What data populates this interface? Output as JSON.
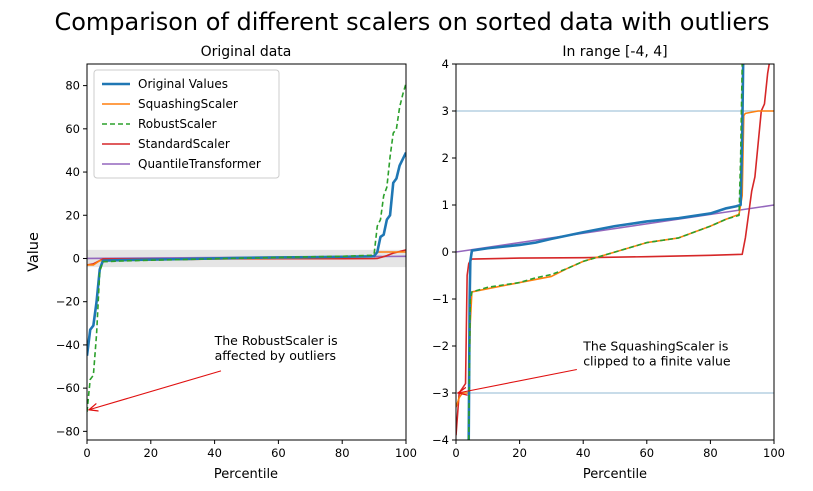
{
  "title": "Comparison of different scalers on sorted data with outliers",
  "ylabel": "Value",
  "colors": {
    "original": "#1f77b4",
    "squashing": "#ff7f0e",
    "robust": "#2ca02c",
    "standard": "#d62728",
    "quantile": "#9467bd",
    "band": "#dcdcdc",
    "hline": "#a8c8dc",
    "arrow": "#e01010"
  },
  "chart_data": [
    {
      "type": "line",
      "title": "Original data",
      "xlabel": "Percentile",
      "ylabel": "Value",
      "xlim": [
        0,
        100
      ],
      "ylim": [
        -84,
        90
      ],
      "x_ticks": [
        0,
        20,
        40,
        60,
        80,
        100
      ],
      "y_ticks": [
        -80,
        -60,
        -40,
        -20,
        0,
        20,
        40,
        60,
        80
      ],
      "band": [
        -4,
        4
      ],
      "legend_position": "top-left",
      "series": [
        {
          "name": "Original Values",
          "key": "original",
          "style": "solid-thick",
          "x": [
            0,
            1,
            2,
            3,
            4,
            5,
            10,
            20,
            30,
            40,
            50,
            60,
            70,
            80,
            89,
            90,
            91,
            92,
            93,
            94,
            95,
            96,
            97,
            98,
            99,
            100
          ],
          "y": [
            -45,
            -33,
            -31,
            -20,
            -5,
            -1,
            -0.8,
            -0.5,
            -0.3,
            0,
            0.3,
            0.5,
            0.6,
            0.8,
            1.0,
            1.1,
            3,
            10,
            11,
            18,
            20,
            35,
            37,
            43,
            46,
            49
          ]
        },
        {
          "name": "SquashingScaler",
          "key": "squashing",
          "style": "solid",
          "x": [
            0,
            2,
            4,
            5,
            10,
            30,
            50,
            70,
            89,
            90,
            91,
            95,
            100
          ],
          "y": [
            -3,
            -3,
            -1,
            -0.9,
            -0.8,
            -0.5,
            0,
            0.3,
            0.8,
            1.5,
            3,
            3,
            3
          ]
        },
        {
          "name": "RobustScaler",
          "key": "robust",
          "style": "dashed",
          "x": [
            0,
            1,
            2,
            3,
            4,
            5,
            10,
            20,
            30,
            40,
            50,
            60,
            70,
            80,
            89,
            90,
            91,
            92,
            93,
            94,
            95,
            96,
            97,
            98,
            99,
            100
          ],
          "y": [
            -71,
            -56,
            -54,
            -35,
            -6,
            -1.5,
            -1.2,
            -0.8,
            -0.5,
            -0.1,
            0.2,
            0.5,
            0.8,
            1.0,
            1.5,
            2,
            15,
            18,
            29,
            33,
            47,
            58,
            60,
            70,
            76,
            81
          ]
        },
        {
          "name": "StandardScaler",
          "key": "standard",
          "style": "solid",
          "x": [
            0,
            2,
            4,
            5,
            20,
            40,
            60,
            80,
            90,
            91,
            94,
            96,
            98,
            100
          ],
          "y": [
            -3,
            -2.5,
            -1,
            -0.2,
            -0.18,
            -0.15,
            -0.12,
            -0.08,
            -0.05,
            0,
            1.3,
            2.5,
            3.2,
            4
          ]
        },
        {
          "name": "QuantileTransformer",
          "key": "quantile",
          "style": "solid",
          "x": [
            0,
            100
          ],
          "y": [
            0,
            1
          ]
        }
      ],
      "annotation": {
        "text_lines": [
          "The RobustScaler is",
          "affected by outliers"
        ],
        "text_at": [
          40,
          -40
        ],
        "arrow_from": [
          42,
          -52
        ],
        "arrow_to": [
          0,
          -70
        ]
      }
    },
    {
      "type": "line",
      "title": "In range [-4, 4]",
      "xlabel": "Percentile",
      "ylabel": "",
      "xlim": [
        0,
        100
      ],
      "ylim": [
        -4,
        4
      ],
      "x_ticks": [
        0,
        20,
        40,
        60,
        80,
        100
      ],
      "y_ticks": [
        -4,
        -3,
        -2,
        -1,
        0,
        1,
        2,
        3,
        4
      ],
      "hlines": [
        3,
        -3
      ],
      "series": [
        {
          "name": "Original Values",
          "key": "original",
          "style": "solid-thick",
          "x": [
            4,
            4.3,
            4.5,
            5,
            10,
            20,
            25,
            30,
            40,
            50,
            60,
            70,
            80,
            85,
            88,
            89.5,
            90,
            90.3
          ],
          "y": [
            -4,
            -1,
            -0.2,
            0.03,
            0.08,
            0.15,
            0.2,
            0.28,
            0.42,
            0.55,
            0.65,
            0.72,
            0.82,
            0.93,
            0.97,
            1.0,
            2.5,
            4
          ]
        },
        {
          "name": "SquashingScaler",
          "key": "squashing",
          "style": "solid",
          "x": [
            0,
            1,
            2,
            3,
            4,
            4.5,
            5,
            10,
            20,
            30,
            35,
            40,
            50,
            60,
            70,
            80,
            85,
            89,
            90,
            90.5,
            91,
            95,
            100
          ],
          "y": [
            -3.3,
            -3.1,
            -3.0,
            -3.0,
            -3.0,
            -1.5,
            -0.85,
            -0.78,
            -0.65,
            -0.52,
            -0.35,
            -0.2,
            0.0,
            0.2,
            0.3,
            0.55,
            0.7,
            0.8,
            1.2,
            2.9,
            2.95,
            3.0,
            3.0
          ]
        },
        {
          "name": "RobustScaler",
          "key": "robust",
          "style": "dashed",
          "x": [
            4,
            4.3,
            4.5,
            5,
            10,
            20,
            25,
            30,
            35,
            40,
            50,
            60,
            70,
            80,
            85,
            89,
            89.5,
            90
          ],
          "y": [
            -4,
            -2,
            -1,
            -0.85,
            -0.75,
            -0.65,
            -0.55,
            -0.48,
            -0.35,
            -0.2,
            0.0,
            0.2,
            0.3,
            0.55,
            0.7,
            0.78,
            2,
            4
          ]
        },
        {
          "name": "StandardScaler",
          "key": "standard",
          "style": "solid",
          "x": [
            0,
            1,
            2,
            3,
            3.5,
            4,
            4.5,
            5,
            20,
            40,
            60,
            80,
            90,
            91,
            93,
            94,
            96,
            97,
            98,
            98.5
          ],
          "y": [
            -3.9,
            -3.0,
            -2.9,
            -2.8,
            -0.5,
            -0.25,
            -0.18,
            -0.15,
            -0.13,
            -0.12,
            -0.1,
            -0.07,
            -0.05,
            0.3,
            1.3,
            1.6,
            3.0,
            3.15,
            3.8,
            4
          ]
        },
        {
          "name": "QuantileTransformer",
          "key": "quantile",
          "style": "solid",
          "x": [
            0,
            100
          ],
          "y": [
            0,
            1
          ]
        }
      ],
      "annotation": {
        "text_lines": [
          "The SquashingScaler is",
          "clipped to a finite value"
        ],
        "text_at": [
          40,
          -2.1
        ],
        "arrow_from": [
          38,
          -2.5
        ],
        "arrow_to": [
          0,
          -3
        ]
      }
    }
  ]
}
